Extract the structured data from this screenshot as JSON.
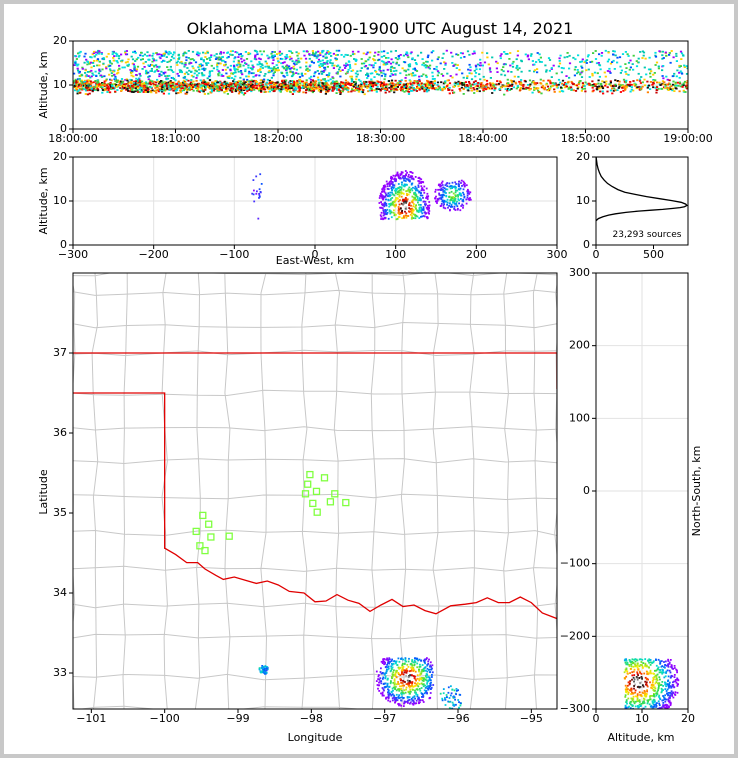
{
  "chart_data": [
    {
      "type": "scatter",
      "panel": "time-altitude",
      "title": "Oklahoma LMA 1800-1900 UTC August 14, 2021",
      "xlabel": "",
      "ylabel": "Altitude, km",
      "xlim": [
        "18:00:00",
        "19:00:00"
      ],
      "ylim": [
        0,
        20
      ],
      "x_ticks": [
        "18:00:00",
        "18:10:00",
        "18:20:00",
        "18:30:00",
        "18:40:00",
        "18:50:00",
        "19:00:00"
      ],
      "y_ticks": [
        "0",
        "10",
        "20"
      ],
      "source_altitude_band_km": [
        5,
        18
      ],
      "densest_altitude_km": [
        8,
        12
      ]
    },
    {
      "type": "scatter",
      "panel": "east-west-altitude",
      "xlabel": "East-West, km",
      "ylabel": "Altitude, km",
      "xlim": [
        -300,
        300
      ],
      "ylim": [
        0,
        20
      ],
      "x_ticks": [
        "−300",
        "−200",
        "−100",
        "0",
        "100",
        "200",
        "300"
      ],
      "y_ticks": [
        "0",
        "10",
        "20"
      ],
      "clusters": [
        {
          "x": [
            -80,
            -65
          ],
          "alt": [
            6,
            17
          ],
          "density": "low"
        },
        {
          "x": [
            75,
            145
          ],
          "alt": [
            6,
            20
          ],
          "density": "high",
          "peak": [
            110,
            9
          ]
        },
        {
          "x": [
            145,
            195
          ],
          "alt": [
            8,
            15
          ],
          "density": "medium"
        }
      ]
    },
    {
      "type": "line",
      "panel": "altitude-histogram",
      "xlabel": "",
      "ylabel": "",
      "xlim": [
        0,
        800
      ],
      "ylim": [
        0,
        20
      ],
      "x_ticks": [
        "0",
        "500"
      ],
      "y_ticks": [
        "0",
        "10",
        "20"
      ],
      "annotation": "23,293 sources",
      "x": [
        0,
        20,
        60,
        110,
        170,
        260,
        370,
        480,
        580,
        660,
        730,
        770,
        790,
        780,
        740,
        660,
        560,
        440,
        340,
        250,
        190,
        140,
        100,
        70,
        45,
        30,
        18,
        10,
        4,
        0
      ],
      "y": [
        5.5,
        6.0,
        6.4,
        6.8,
        7.1,
        7.4,
        7.7,
        7.9,
        8.1,
        8.3,
        8.5,
        8.7,
        9.0,
        9.3,
        9.7,
        10.1,
        10.5,
        11.0,
        11.5,
        12.0,
        12.6,
        13.3,
        14.0,
        14.8,
        15.6,
        16.4,
        17.3,
        18.3,
        19.3,
        20.2
      ]
    },
    {
      "type": "scatter",
      "panel": "plan-view-map",
      "xlabel": "Longitude",
      "ylabel": "Latitude",
      "xlim": [
        -101.25,
        -94.65
      ],
      "ylim": [
        32.55,
        38.0
      ],
      "x_ticks": [
        "−101",
        "−100",
        "−99",
        "−98",
        "−97",
        "−96",
        "−95"
      ],
      "y_ticks": [
        "33",
        "34",
        "35",
        "36",
        "37"
      ],
      "station_color": "#80ff40",
      "boundary_color": "#e00000",
      "county_color": "#c8c8c8",
      "stations": [
        {
          "lon": -98.02,
          "lat": 35.48
        },
        {
          "lon": -97.82,
          "lat": 35.44
        },
        {
          "lon": -98.05,
          "lat": 35.36
        },
        {
          "lon": -98.08,
          "lat": 35.24
        },
        {
          "lon": -97.93,
          "lat": 35.27
        },
        {
          "lon": -97.68,
          "lat": 35.24
        },
        {
          "lon": -97.98,
          "lat": 35.12
        },
        {
          "lon": -97.74,
          "lat": 35.14
        },
        {
          "lon": -97.53,
          "lat": 35.13
        },
        {
          "lon": -97.92,
          "lat": 35.01
        },
        {
          "lon": -99.48,
          "lat": 34.97
        },
        {
          "lon": -99.4,
          "lat": 34.86
        },
        {
          "lon": -99.57,
          "lat": 34.77
        },
        {
          "lon": -99.37,
          "lat": 34.7
        },
        {
          "lon": -99.12,
          "lat": 34.71
        },
        {
          "lon": -99.52,
          "lat": 34.59
        },
        {
          "lon": -99.45,
          "lat": 34.53
        }
      ],
      "clusters": [
        {
          "lon": [
            -97.15,
            -96.35
          ],
          "lat": [
            32.55,
            33.2
          ],
          "density": "high",
          "peak": [
            -96.7,
            32.95
          ]
        },
        {
          "lon": [
            -96.25,
            -95.95
          ],
          "lat": [
            32.55,
            32.85
          ],
          "density": "low"
        },
        {
          "lon": [
            -98.72,
            -98.6
          ],
          "lat": [
            33.0,
            33.1
          ],
          "density": "low"
        }
      ]
    },
    {
      "type": "scatter",
      "panel": "altitude-north-south",
      "xlabel": "Altitude, km",
      "ylabel": "North-South, km",
      "xlim": [
        0,
        20
      ],
      "ylim": [
        -300,
        300
      ],
      "x_ticks": [
        "0",
        "10",
        "20"
      ],
      "y_ticks": [
        "−300",
        "−200",
        "−100",
        "0",
        "100",
        "200",
        "300"
      ],
      "cluster": {
        "alt": [
          6,
          20
        ],
        "ns": [
          -300,
          -230
        ],
        "peak": [
          9,
          -262
        ]
      }
    }
  ]
}
